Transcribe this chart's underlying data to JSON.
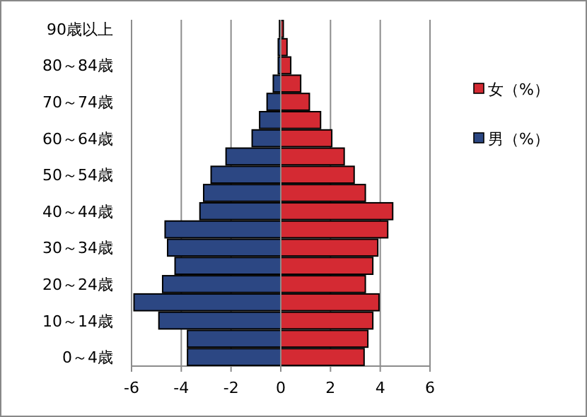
{
  "chart_data": {
    "type": "bar",
    "orientation": "horizontal",
    "stacked": true,
    "categories": [
      "90歳以上",
      null,
      "80～84歳",
      null,
      "70～74歳",
      null,
      "60～64歳",
      null,
      "50～54歳",
      null,
      "40～44歳",
      null,
      "30～34歳",
      null,
      "20～24歳",
      null,
      "10～14歳",
      null,
      "0～4歳"
    ],
    "series": [
      {
        "name": "女（%）",
        "color": "#d42a33",
        "values": [
          0.1,
          0.25,
          0.4,
          0.8,
          1.15,
          1.6,
          2.05,
          2.55,
          2.95,
          3.4,
          4.5,
          4.3,
          3.9,
          3.7,
          3.4,
          3.95,
          3.7,
          3.5,
          3.35
        ]
      },
      {
        "name": "男（%）",
        "color": "#2c4783",
        "values": [
          -0.05,
          -0.1,
          -0.1,
          -0.3,
          -0.55,
          -0.85,
          -1.15,
          -2.2,
          -2.8,
          -3.1,
          -3.25,
          -4.65,
          -4.55,
          -4.25,
          -4.75,
          -5.9,
          -4.9,
          -3.75,
          -3.75
        ]
      }
    ],
    "xlim": [
      -6,
      6
    ],
    "xticks": [
      -6,
      -4,
      -2,
      0,
      2,
      4,
      6
    ],
    "grid": "x",
    "legend": "right"
  }
}
